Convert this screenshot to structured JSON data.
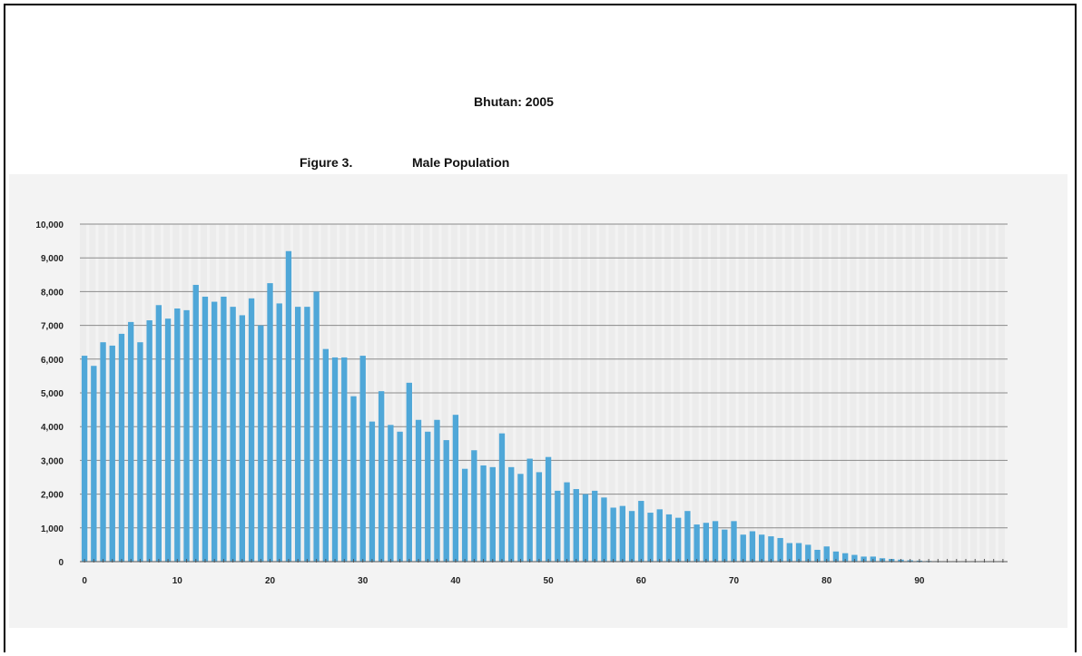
{
  "header": {
    "title": "Bhutan: 2005",
    "figure_number": "Figure 3.",
    "figure_title": "Male Population"
  },
  "chart_data": {
    "type": "bar",
    "title": "Male Population",
    "xlabel": "",
    "ylabel": "",
    "ylim": [
      0,
      10000
    ],
    "yticks": [
      0,
      1000,
      2000,
      3000,
      4000,
      5000,
      6000,
      7000,
      8000,
      9000,
      10000
    ],
    "ytick_labels": [
      "0",
      "1,000",
      "2,000",
      "3,000",
      "4,000",
      "5,000",
      "6,000",
      "7,000",
      "8,000",
      "9,000",
      "10,000"
    ],
    "xticks": [
      0,
      10,
      20,
      30,
      40,
      50,
      60,
      70,
      80,
      90
    ],
    "xtick_labels": [
      "0",
      "10",
      "20",
      "30",
      "40",
      "50",
      "60",
      "70",
      "80",
      "90"
    ],
    "grid": true,
    "bar_color": "#4fa7d8",
    "categories": [
      0,
      1,
      2,
      3,
      4,
      5,
      6,
      7,
      8,
      9,
      10,
      11,
      12,
      13,
      14,
      15,
      16,
      17,
      18,
      19,
      20,
      21,
      22,
      23,
      24,
      25,
      26,
      27,
      28,
      29,
      30,
      31,
      32,
      33,
      34,
      35,
      36,
      37,
      38,
      39,
      40,
      41,
      42,
      43,
      44,
      45,
      46,
      47,
      48,
      49,
      50,
      51,
      52,
      53,
      54,
      55,
      56,
      57,
      58,
      59,
      60,
      61,
      62,
      63,
      64,
      65,
      66,
      67,
      68,
      69,
      70,
      71,
      72,
      73,
      74,
      75,
      76,
      77,
      78,
      79,
      80,
      81,
      82,
      83,
      84,
      85,
      86,
      87,
      88,
      89,
      90,
      91,
      92,
      93,
      94,
      95,
      96,
      97,
      98,
      99
    ],
    "values": [
      6100,
      5800,
      6500,
      6400,
      6750,
      7100,
      6500,
      7150,
      7600,
      7200,
      7500,
      7450,
      8200,
      7850,
      7700,
      7850,
      7550,
      7300,
      7800,
      7000,
      8250,
      7650,
      9200,
      7550,
      7550,
      8000,
      6300,
      6050,
      6050,
      4900,
      6100,
      4150,
      5050,
      4050,
      3850,
      5300,
      4200,
      3850,
      4200,
      3600,
      4350,
      2750,
      3300,
      2850,
      2800,
      3800,
      2800,
      2600,
      3050,
      2650,
      3100,
      2100,
      2350,
      2150,
      2000,
      2100,
      1900,
      1600,
      1650,
      1500,
      1800,
      1450,
      1550,
      1400,
      1300,
      1500,
      1100,
      1150,
      1200,
      950,
      1200,
      800,
      900,
      800,
      750,
      700,
      550,
      550,
      500,
      350,
      450,
      300,
      250,
      200,
      150,
      150,
      100,
      80,
      60,
      40,
      30,
      20,
      15,
      10,
      8,
      5,
      4,
      3,
      2,
      1
    ]
  }
}
